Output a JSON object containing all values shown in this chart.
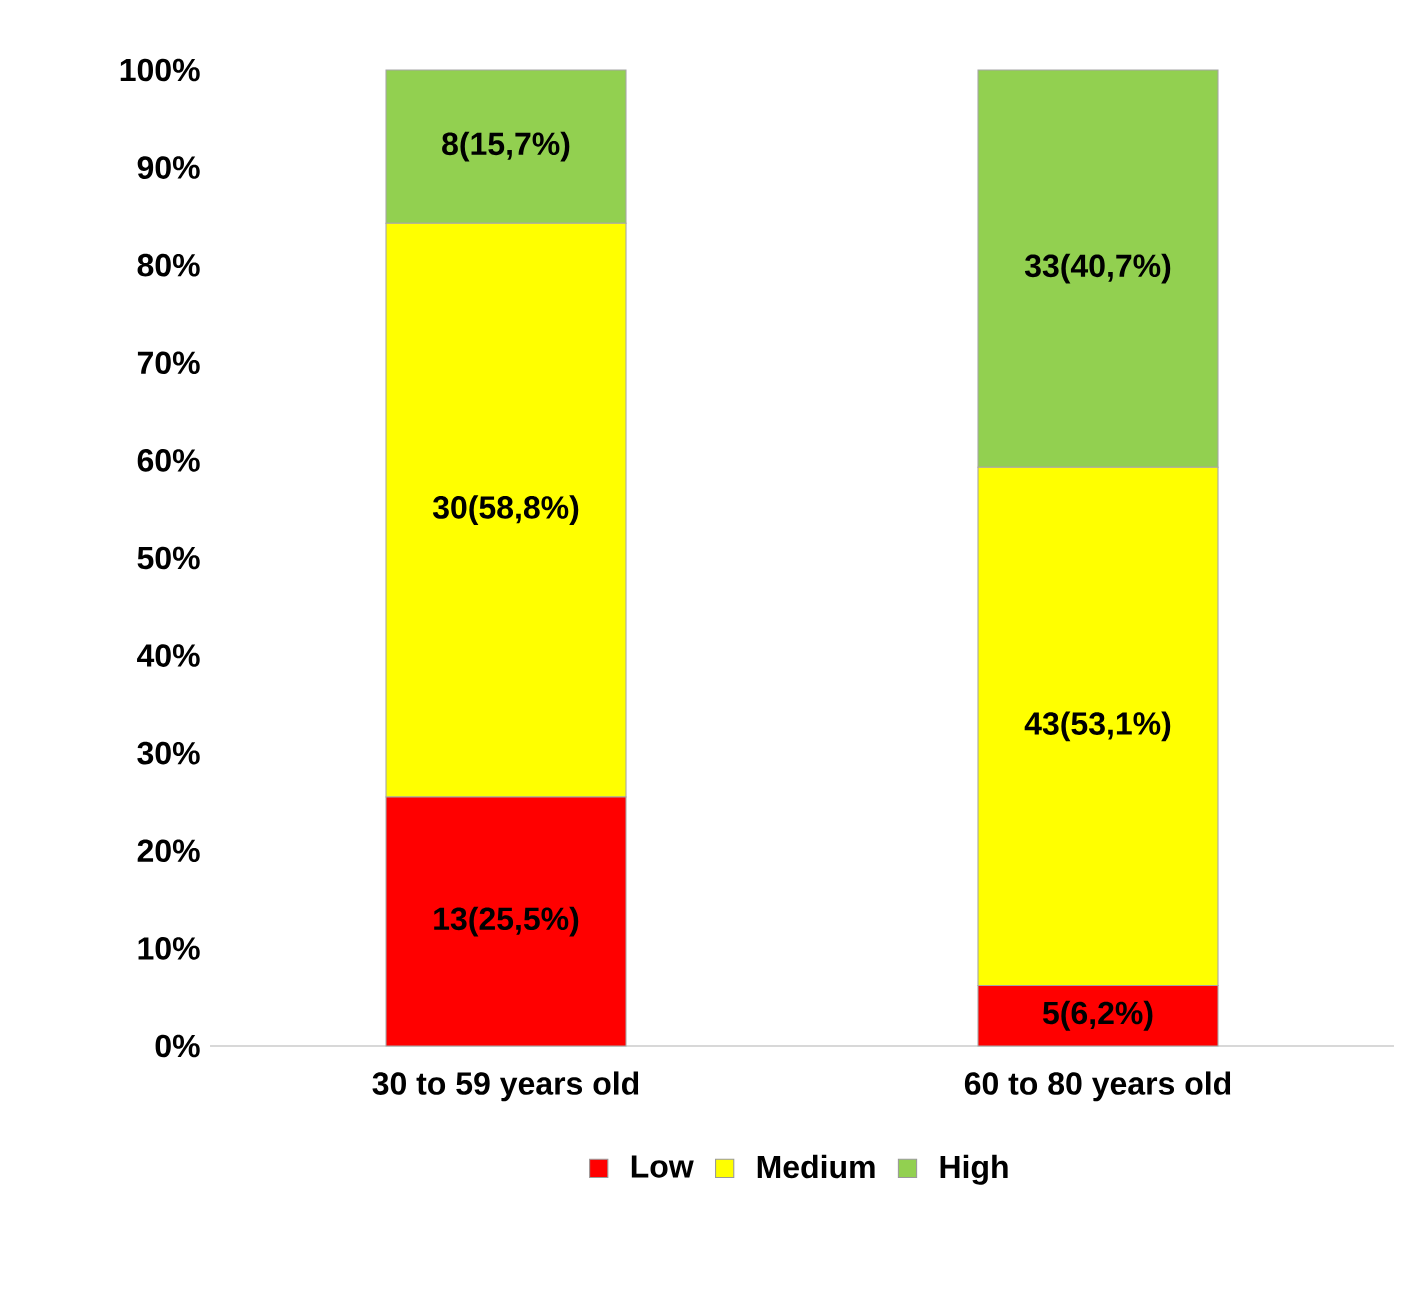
{
  "chart_data": {
    "type": "bar",
    "stacked": true,
    "categories": [
      "30 to 59 years old",
      "60 to 80 years old"
    ],
    "series": [
      {
        "name": "Low",
        "color": "#ff0000",
        "values": [
          25.5,
          6.2
        ],
        "value_labels": [
          "13(25,5%)",
          "5(6,2%)"
        ]
      },
      {
        "name": "Medium",
        "color": "#ffff00",
        "values": [
          58.8,
          53.1
        ],
        "value_labels": [
          "30(58,8%)",
          "43(53,1%)"
        ]
      },
      {
        "name": "High",
        "color": "#92d050",
        "values": [
          15.7,
          40.7
        ],
        "value_labels": [
          "8(15,7%)",
          "33(40,7%)"
        ]
      }
    ],
    "ylim": [
      0,
      100
    ],
    "yticks": [
      {
        "value": 0,
        "label": "0%"
      },
      {
        "value": 10,
        "label": "10%"
      },
      {
        "value": 20,
        "label": "20%"
      },
      {
        "value": 30,
        "label": "30%"
      },
      {
        "value": 40,
        "label": "40%"
      },
      {
        "value": 50,
        "label": "50%"
      },
      {
        "value": 60,
        "label": "60%"
      },
      {
        "value": 70,
        "label": "70%"
      },
      {
        "value": 80,
        "label": "80%"
      },
      {
        "value": 90,
        "label": "90%"
      },
      {
        "value": 100,
        "label": "100%"
      }
    ],
    "legend": "bottom"
  }
}
